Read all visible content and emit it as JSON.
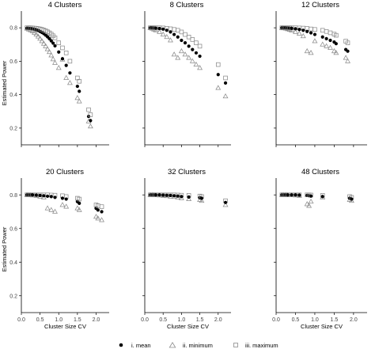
{
  "chart_data": {
    "type": "scatter",
    "ylabel": "Estimated Power",
    "xlabel": "Cluster Size CV",
    "xlim": [
      0,
      2.35
    ],
    "ylim": [
      0.1,
      0.9
    ],
    "x_ticks": [
      0.0,
      0.5,
      1.0,
      1.5,
      2.0
    ],
    "x_tick_labels": [
      "0.0",
      "0.5",
      "1.0",
      "1.5",
      "2.0"
    ],
    "y_ticks": [
      0.2,
      0.4,
      0.6,
      0.8
    ],
    "y_tick_labels": [
      "0.2",
      "0.4",
      "0.6",
      "0.8"
    ],
    "grid": false,
    "legend_position": "bottom",
    "legend": [
      {
        "key": "mean",
        "label": "i. mean",
        "marker": "filled-circle",
        "color": "#000000"
      },
      {
        "key": "min",
        "label": "ii. minimum",
        "marker": "open-triangle",
        "color": "#8a8a8a"
      },
      {
        "key": "max",
        "label": "iii. maximum",
        "marker": "open-square",
        "color": "#8a8a8a"
      }
    ],
    "panels": [
      {
        "title": "4 Clusters",
        "x": [
          0.15,
          0.2,
          0.25,
          0.3,
          0.35,
          0.4,
          0.45,
          0.5,
          0.55,
          0.6,
          0.65,
          0.7,
          0.75,
          0.8,
          0.85,
          0.9,
          1.0,
          1.1,
          1.2,
          1.3,
          1.5,
          1.55,
          1.8,
          1.85
        ],
        "mean": [
          0.798,
          0.797,
          0.796,
          0.794,
          0.792,
          0.788,
          0.784,
          0.778,
          0.772,
          0.765,
          0.756,
          0.746,
          0.735,
          0.722,
          0.708,
          0.692,
          0.655,
          0.615,
          0.575,
          0.53,
          0.45,
          0.42,
          0.27,
          0.245
        ],
        "min": [
          0.795,
          0.79,
          0.785,
          0.78,
          0.77,
          0.76,
          0.748,
          0.735,
          0.72,
          0.705,
          0.69,
          0.672,
          0.655,
          0.635,
          0.612,
          0.59,
          0.56,
          0.61,
          0.5,
          0.47,
          0.38,
          0.36,
          0.24,
          0.21
        ],
        "max": [
          0.8,
          0.8,
          0.8,
          0.799,
          0.798,
          0.797,
          0.795,
          0.793,
          0.79,
          0.786,
          0.782,
          0.776,
          0.77,
          0.762,
          0.752,
          0.74,
          0.71,
          0.68,
          0.65,
          0.6,
          0.5,
          0.48,
          0.31,
          0.28
        ]
      },
      {
        "title": "8 Clusters",
        "x": [
          0.15,
          0.2,
          0.25,
          0.3,
          0.4,
          0.5,
          0.6,
          0.7,
          0.8,
          0.9,
          1.0,
          1.1,
          1.2,
          1.3,
          1.4,
          1.5,
          2.0,
          2.2
        ],
        "mean": [
          0.8,
          0.8,
          0.799,
          0.798,
          0.796,
          0.792,
          0.785,
          0.775,
          0.76,
          0.745,
          0.725,
          0.71,
          0.69,
          0.67,
          0.65,
          0.63,
          0.52,
          0.47
        ],
        "min": [
          0.798,
          0.795,
          0.79,
          0.785,
          0.775,
          0.76,
          0.745,
          0.725,
          0.64,
          0.62,
          0.66,
          0.64,
          0.62,
          0.6,
          0.58,
          0.56,
          0.44,
          0.39
        ],
        "max": [
          0.8,
          0.8,
          0.8,
          0.8,
          0.8,
          0.799,
          0.797,
          0.794,
          0.79,
          0.785,
          0.775,
          0.76,
          0.745,
          0.73,
          0.71,
          0.69,
          0.58,
          0.5
        ]
      },
      {
        "title": "12 Clusters",
        "x": [
          0.15,
          0.2,
          0.25,
          0.3,
          0.35,
          0.4,
          0.5,
          0.6,
          0.7,
          0.8,
          0.9,
          1.0,
          1.2,
          1.3,
          1.4,
          1.5,
          1.55,
          1.8,
          1.85
        ],
        "mean": [
          0.8,
          0.8,
          0.8,
          0.799,
          0.798,
          0.797,
          0.794,
          0.79,
          0.785,
          0.778,
          0.77,
          0.76,
          0.745,
          0.735,
          0.725,
          0.715,
          0.705,
          0.67,
          0.66
        ],
        "min": [
          0.799,
          0.797,
          0.795,
          0.792,
          0.788,
          0.784,
          0.775,
          0.765,
          0.75,
          0.66,
          0.65,
          0.72,
          0.7,
          0.69,
          0.68,
          0.66,
          0.65,
          0.62,
          0.6
        ],
        "max": [
          0.8,
          0.8,
          0.8,
          0.8,
          0.8,
          0.8,
          0.8,
          0.799,
          0.798,
          0.796,
          0.793,
          0.79,
          0.785,
          0.778,
          0.77,
          0.762,
          0.755,
          0.72,
          0.71
        ]
      },
      {
        "title": "20 Clusters",
        "x": [
          0.15,
          0.2,
          0.25,
          0.3,
          0.4,
          0.5,
          0.6,
          0.7,
          0.8,
          0.9,
          1.1,
          1.2,
          1.5,
          1.55,
          2.0,
          2.05,
          2.15
        ],
        "mean": [
          0.8,
          0.8,
          0.8,
          0.8,
          0.799,
          0.797,
          0.795,
          0.792,
          0.79,
          0.785,
          0.78,
          0.775,
          0.76,
          0.75,
          0.72,
          0.71,
          0.7
        ],
        "min": [
          0.8,
          0.799,
          0.798,
          0.797,
          0.795,
          0.79,
          0.785,
          0.72,
          0.71,
          0.7,
          0.74,
          0.73,
          0.72,
          0.71,
          0.67,
          0.66,
          0.65
        ],
        "max": [
          0.8,
          0.8,
          0.8,
          0.8,
          0.8,
          0.8,
          0.8,
          0.8,
          0.799,
          0.798,
          0.795,
          0.79,
          0.78,
          0.775,
          0.74,
          0.735,
          0.73
        ]
      },
      {
        "title": "32 Clusters",
        "x": [
          0.15,
          0.2,
          0.25,
          0.3,
          0.4,
          0.5,
          0.6,
          0.7,
          0.8,
          0.9,
          1.0,
          1.2,
          1.5,
          1.55,
          2.2
        ],
        "mean": [
          0.8,
          0.8,
          0.8,
          0.8,
          0.8,
          0.799,
          0.798,
          0.797,
          0.795,
          0.793,
          0.79,
          0.787,
          0.783,
          0.78,
          0.755
        ],
        "min": [
          0.8,
          0.8,
          0.799,
          0.798,
          0.797,
          0.795,
          0.793,
          0.79,
          0.788,
          0.785,
          0.78,
          0.775,
          0.77,
          0.765,
          0.74
        ],
        "max": [
          0.8,
          0.8,
          0.8,
          0.8,
          0.8,
          0.8,
          0.8,
          0.8,
          0.8,
          0.799,
          0.798,
          0.797,
          0.793,
          0.79,
          0.765
        ]
      },
      {
        "title": "48 Clusters",
        "x": [
          0.15,
          0.2,
          0.25,
          0.3,
          0.4,
          0.5,
          0.6,
          0.8,
          0.85,
          0.9,
          1.2,
          1.9,
          1.95
        ],
        "mean": [
          0.8,
          0.8,
          0.8,
          0.8,
          0.8,
          0.8,
          0.799,
          0.797,
          0.795,
          0.793,
          0.79,
          0.78,
          0.775
        ],
        "min": [
          0.8,
          0.8,
          0.8,
          0.799,
          0.798,
          0.797,
          0.795,
          0.745,
          0.735,
          0.76,
          0.785,
          0.77,
          0.765
        ],
        "max": [
          0.8,
          0.8,
          0.8,
          0.8,
          0.8,
          0.8,
          0.8,
          0.8,
          0.8,
          0.799,
          0.797,
          0.79,
          0.785
        ]
      }
    ]
  }
}
